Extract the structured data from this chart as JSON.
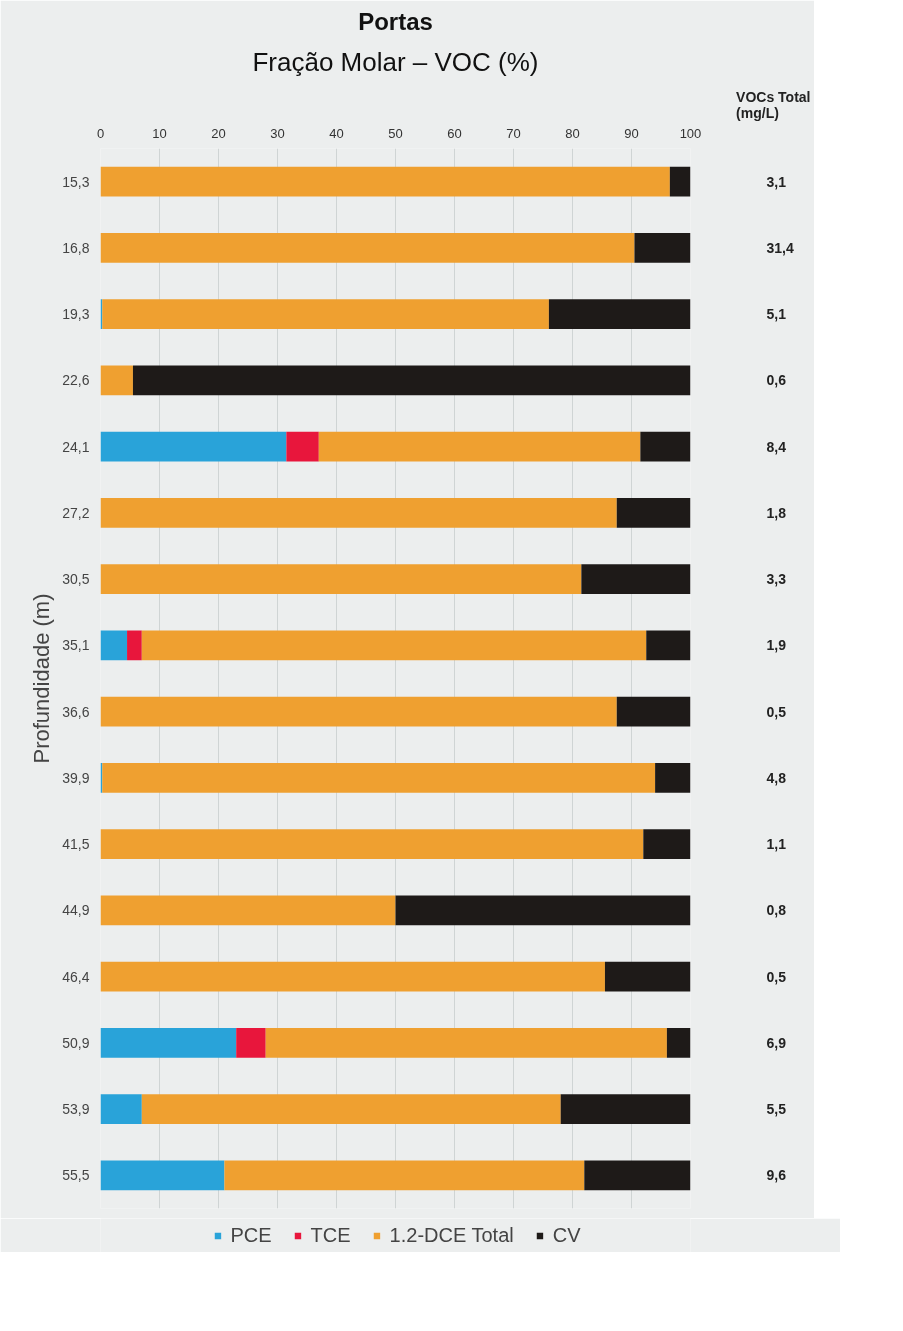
{
  "chart_data": {
    "type": "bar",
    "orientation": "horizontal",
    "stacked": true,
    "title": "Portas",
    "subtitle": "Fração Molar – VOC (%)",
    "ylabel": "Profundidade (m)",
    "categories": [
      "15,3",
      "16,8",
      "19,3",
      "22,6",
      "24,1",
      "27,2",
      "30,5",
      "35,1",
      "36,6",
      "39,9",
      "41,5",
      "44,9",
      "46,4",
      "50,9",
      "53,9",
      "55,5"
    ],
    "series": [
      {
        "name": "PCE",
        "color": "#29a3d9",
        "values": [
          null,
          null,
          0.3,
          null,
          31.5,
          null,
          null,
          4.5,
          null,
          0.3,
          null,
          null,
          null,
          23,
          7,
          21
        ]
      },
      {
        "name": "TCE",
        "color": "#e8163c",
        "values": [
          null,
          null,
          null,
          null,
          5.5,
          null,
          null,
          2.5,
          null,
          null,
          null,
          null,
          null,
          5,
          null,
          null
        ]
      },
      {
        "name": "1.2-DCE Total",
        "color": "#efa030",
        "values": [
          96.5,
          90.5,
          75.7,
          5.5,
          54.5,
          87.5,
          81.5,
          85.5,
          87.5,
          93.7,
          92,
          50,
          85.5,
          68,
          71,
          61
        ]
      },
      {
        "name": "CV",
        "color": "#1e1a18",
        "values": [
          3.5,
          9.5,
          24,
          94.5,
          8.5,
          12.5,
          18.5,
          7.5,
          12.5,
          6,
          8,
          50,
          14.5,
          4,
          22,
          18
        ]
      }
    ],
    "xlim": [
      0,
      100
    ],
    "xticks": [
      0,
      10,
      20,
      30,
      40,
      50,
      60,
      70,
      80,
      90,
      100
    ],
    "grid": "x",
    "legend": "bottom",
    "annotations": [
      "VOCs Total\n(mg/L)",
      "3,1",
      "31,4",
      "5,1",
      "0,6",
      "8,4",
      "1,8",
      "3,3",
      "1,9",
      "0,5",
      "4,8",
      "1,1",
      "0,8",
      "0,5",
      "6,9",
      "5,5",
      "9,6"
    ]
  }
}
